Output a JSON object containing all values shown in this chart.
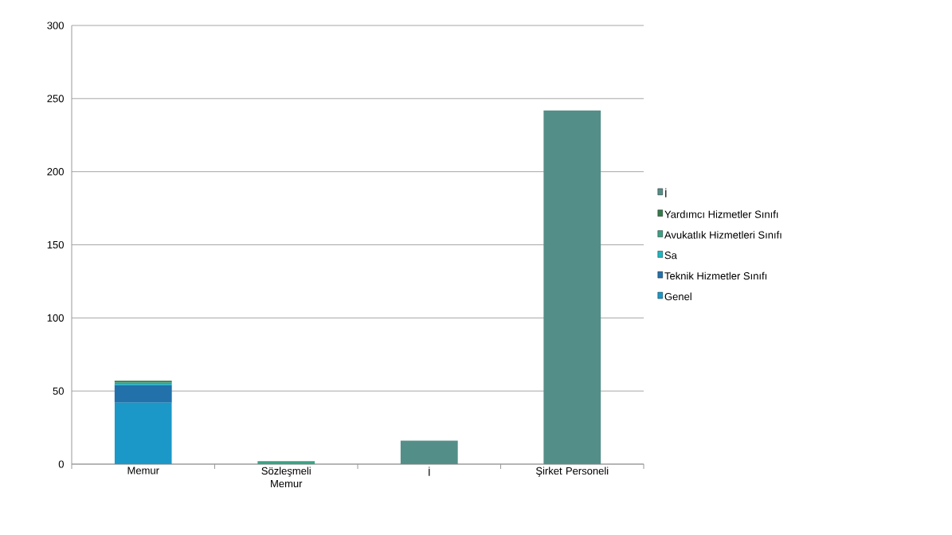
{
  "chart_data": {
    "type": "bar",
    "stacked": true,
    "categories": [
      "Memur",
      "Sözleşmeli Memur",
      "İ",
      "Şirket Personeli"
    ],
    "series": [
      {
        "name": "Genel",
        "color": "#1b98c8",
        "values": [
          42,
          null,
          null,
          null
        ]
      },
      {
        "name": "Teknik Hizmetler Sınıfı",
        "color": "#2271aa",
        "values": [
          12,
          null,
          null,
          null
        ]
      },
      {
        "name": "Sa",
        "color": "#20b5c0",
        "values": [
          1,
          null,
          null,
          null
        ]
      },
      {
        "name": "Avukatlık Hizmetleri Sınıfı",
        "color": "#3aa184",
        "values": [
          1,
          2,
          null,
          null
        ]
      },
      {
        "name": "Yardımcı Hizmetler Sınıfı",
        "color": "#357a4b",
        "values": [
          1,
          null,
          null,
          null
        ]
      },
      {
        "name": "İ",
        "color": "#548e88",
        "values": [
          null,
          null,
          16,
          242
        ]
      }
    ],
    "ylim": [
      0,
      300
    ],
    "yticks": [
      0,
      50,
      100,
      150,
      200,
      250,
      300
    ],
    "grid": "y",
    "legend": "right"
  }
}
